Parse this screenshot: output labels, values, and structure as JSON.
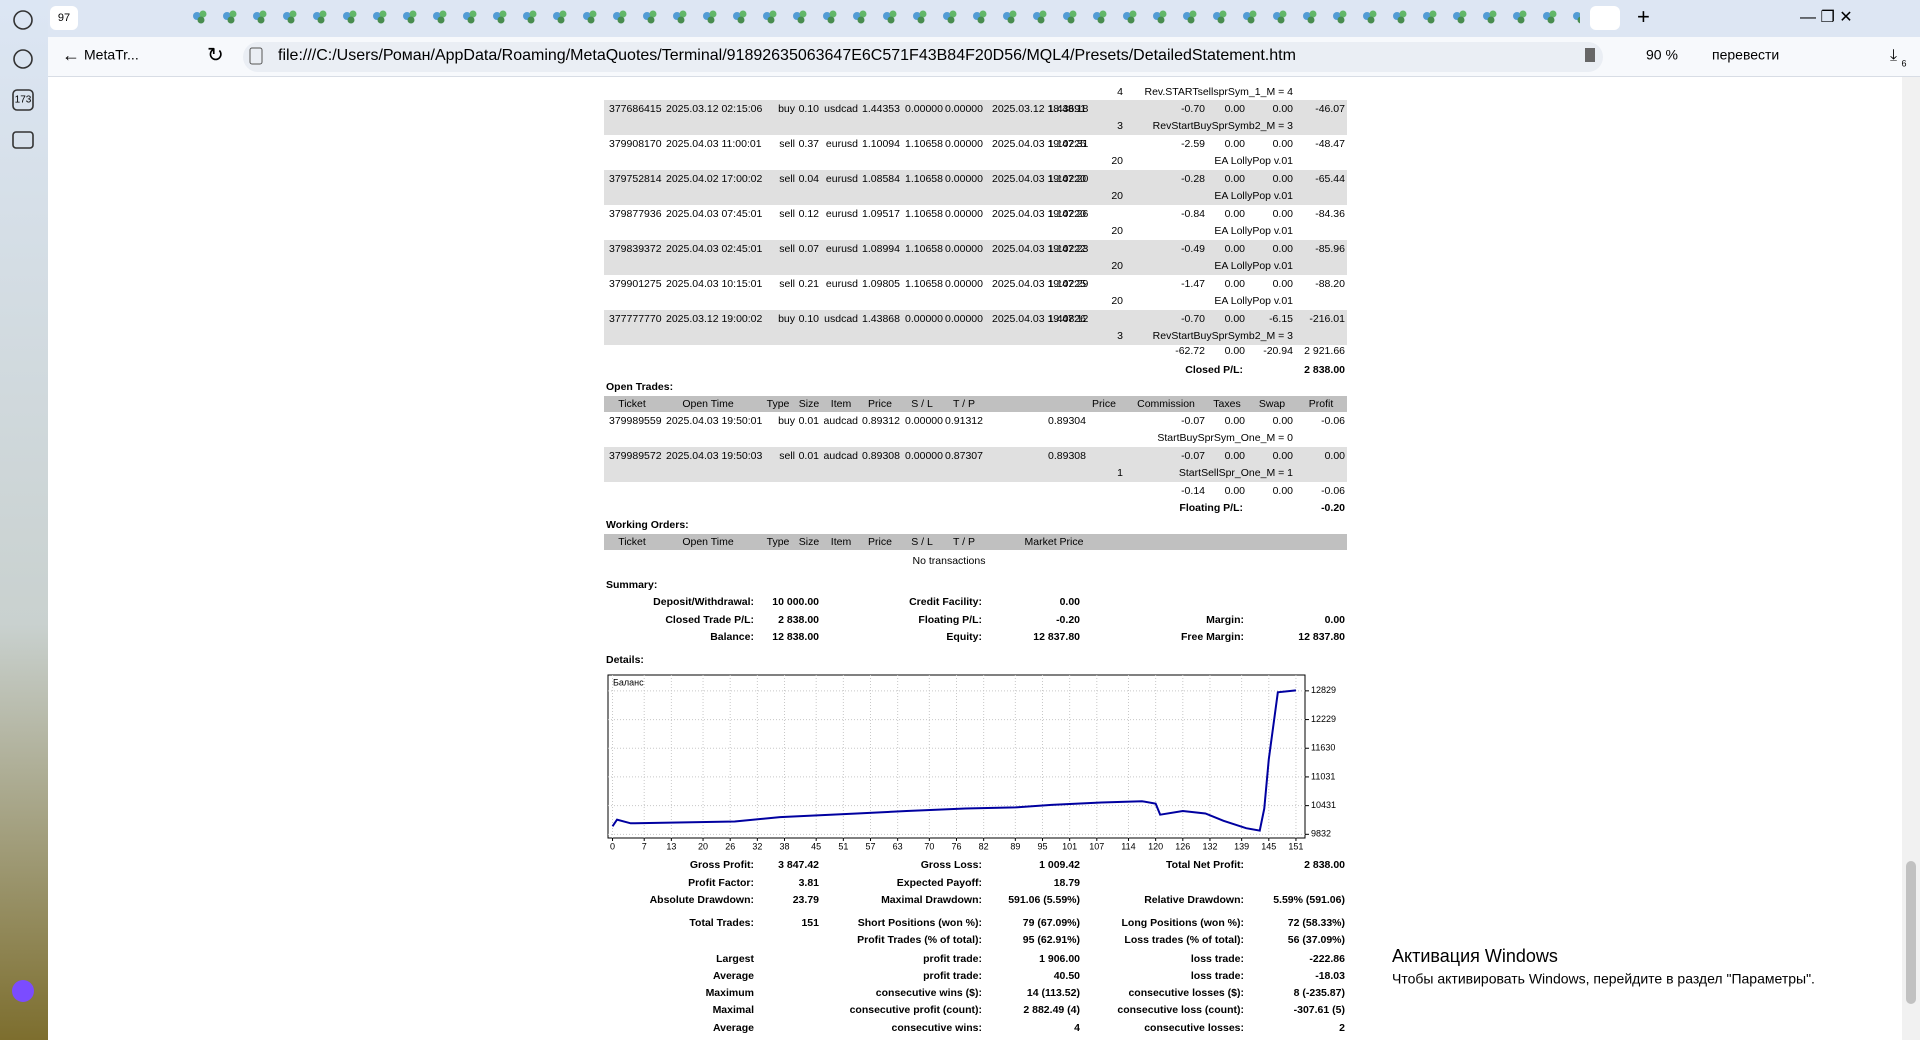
{
  "browser": {
    "tab_counter": "97",
    "page_tab": "MetaTr...",
    "address": "file:///C:/Users/Роман/AppData/Roaming/MetaQuotes/Terminal/91892635063647E6C571F43B84F20D56/MQL4/Presets/DetailedStatement.htm",
    "zoom": "90 %",
    "translate": "перевести",
    "sidebar_badge": "173",
    "downloads_badge": "6"
  },
  "closed_trades": {
    "partial_row": {
      "digits": "4",
      "comment": "Rev.STARTsellsprSym_1_M = 4"
    },
    "rows": [
      {
        "cells": [
          "377686415",
          "2025.03.12 02:15:06",
          "buy",
          "0.10",
          "usdcad",
          "1.44353",
          "0.00000",
          "0.00000",
          "2025.03.12 18:48:18",
          "1.43691",
          "-0.70",
          "0.00",
          "0.00",
          "-46.07"
        ],
        "digits": "3",
        "comment": "RevStartBuySprSymb2_M = 3"
      },
      {
        "cells": [
          "379908170",
          "2025.04.03 11:00:01",
          "sell",
          "0.37",
          "eurusd",
          "1.10094",
          "1.10658",
          "0.00000",
          "2025.04.03 19:47:31",
          "1.10225",
          "-2.59",
          "0.00",
          "0.00",
          "-48.47"
        ],
        "digits": "20",
        "comment": "EA LollyPop v.01"
      },
      {
        "cells": [
          "379752814",
          "2025.04.02 17:00:02",
          "sell",
          "0.04",
          "eurusd",
          "1.08584",
          "1.10658",
          "0.00000",
          "2025.04.03 19:47:20",
          "1.10220",
          "-0.28",
          "0.00",
          "0.00",
          "-65.44"
        ],
        "digits": "20",
        "comment": "EA LollyPop v.01"
      },
      {
        "cells": [
          "379877936",
          "2025.04.03 07:45:01",
          "sell",
          "0.12",
          "eurusd",
          "1.09517",
          "1.10658",
          "0.00000",
          "2025.04.03 19:47:26",
          "1.10220",
          "-0.84",
          "0.00",
          "0.00",
          "-84.36"
        ],
        "digits": "20",
        "comment": "EA LollyPop v.01"
      },
      {
        "cells": [
          "379839372",
          "2025.04.03 02:45:01",
          "sell",
          "0.07",
          "eurusd",
          "1.08994",
          "1.10658",
          "0.00000",
          "2025.04.03 19:47:23",
          "1.10222",
          "-0.49",
          "0.00",
          "0.00",
          "-85.96"
        ],
        "digits": "20",
        "comment": "EA LollyPop v.01"
      },
      {
        "cells": [
          "379901275",
          "2025.04.03 10:15:01",
          "sell",
          "0.21",
          "eurusd",
          "1.09805",
          "1.10658",
          "0.00000",
          "2025.04.03 19:47:29",
          "1.10225",
          "-1.47",
          "0.00",
          "0.00",
          "-88.20"
        ],
        "digits": "20",
        "comment": "EA LollyPop v.01"
      },
      {
        "cells": [
          "377777770",
          "2025.03.12 19:00:02",
          "buy",
          "0.10",
          "usdcad",
          "1.43868",
          "0.00000",
          "0.00000",
          "2025.04.03 19:47:12",
          "1.40826",
          "-0.70",
          "0.00",
          "-6.15",
          "-216.01"
        ],
        "digits": "3",
        "comment": "RevStartBuySprSymb2_M = 3"
      }
    ],
    "totals": [
      "-62.72",
      "0.00",
      "-20.94",
      "2 921.66"
    ],
    "pl_label": "Closed P/L:",
    "pl": "2 838.00"
  },
  "open_trades": {
    "title": "Open Trades:",
    "header": [
      "Ticket",
      "Open Time",
      "Type",
      "Size",
      "Item",
      "Price",
      "S / L",
      "T / P",
      "Price",
      "Commission",
      "Taxes",
      "Swap",
      "Profit"
    ],
    "rows": [
      {
        "cells": [
          "379989559",
          "2025.04.03 19:50:01",
          "buy",
          "0.01",
          "audcad",
          "0.89312",
          "0.00000",
          "0.91312",
          "0.89304",
          "-0.07",
          "0.00",
          "0.00",
          "-0.06"
        ],
        "digits": null,
        "comment": "StartBuySprSym_One_M = 0"
      },
      {
        "cells": [
          "379989572",
          "2025.04.03 19:50:03",
          "sell",
          "0.01",
          "audcad",
          "0.89308",
          "0.00000",
          "0.87307",
          "0.89308",
          "-0.07",
          "0.00",
          "0.00",
          "0.00"
        ],
        "digits": "1",
        "comment": "StartSellSpr_One_M = 1"
      }
    ],
    "totals": [
      "-0.14",
      "0.00",
      "0.00",
      "-0.06"
    ],
    "pl_label": "Floating P/L:",
    "pl": "-0.20"
  },
  "working_orders": {
    "title": "Working Orders:",
    "header": [
      "Ticket",
      "Open Time",
      "Type",
      "Size",
      "Item",
      "Price",
      "S / L",
      "T / P",
      "Market Price"
    ],
    "empty": "No transactions"
  },
  "summary": {
    "title": "Summary:",
    "rows": [
      [
        "Deposit/Withdrawal:",
        "10 000.00",
        "Credit Facility:",
        "0.00",
        null,
        null
      ],
      [
        "Closed Trade P/L:",
        "2 838.00",
        "Floating P/L:",
        "-0.20",
        "Margin:",
        "0.00"
      ],
      [
        "Balance:",
        "12 838.00",
        "Equity:",
        "12 837.80",
        "Free Margin:",
        "12 837.80"
      ]
    ]
  },
  "details": {
    "title": "Details:",
    "chart_data": {
      "type": "line",
      "series_label": "Баланс",
      "color": "#0000a0",
      "x": [
        0,
        1,
        4,
        27,
        37,
        54,
        65,
        78,
        89,
        97,
        108,
        117,
        120,
        121,
        126,
        131,
        135,
        140,
        143,
        144,
        145,
        147,
        151
      ],
      "values": [
        10000,
        10139,
        10062,
        10100,
        10190,
        10267,
        10318,
        10370,
        10395,
        10446,
        10497,
        10523,
        10472,
        10242,
        10318,
        10267,
        10113,
        9960,
        9909,
        10370,
        11400,
        12800,
        12838
      ],
      "xlim": [
        -1,
        153
      ],
      "ylim": [
        9755,
        13160
      ],
      "xticks": [
        0,
        7,
        13,
        20,
        26,
        32,
        38,
        45,
        51,
        57,
        63,
        70,
        76,
        82,
        89,
        95,
        101,
        107,
        114,
        120,
        126,
        132,
        139,
        145,
        151
      ],
      "yticks": [
        12829,
        12229,
        11630,
        11031,
        10431,
        9832
      ],
      "grid": true
    },
    "stats": [
      [
        "Gross Profit:",
        "3 847.42",
        "Gross Loss:",
        "1 009.42",
        "Total Net Profit:",
        "2 838.00"
      ],
      [
        "Profit Factor:",
        "3.81",
        "Expected Payoff:",
        "18.79",
        null,
        null
      ],
      [
        "Absolute Drawdown:",
        "23.79",
        "Maximal Drawdown:",
        "591.06 (5.59%)",
        "Relative Drawdown:",
        "5.59% (591.06)"
      ],
      [
        "Total Trades:",
        "151",
        "Short Positions (won %):",
        "79 (67.09%)",
        "Long Positions (won %):",
        "72 (58.33%)"
      ],
      [
        null,
        null,
        "Profit Trades (% of total):",
        "95 (62.91%)",
        "Loss trades (% of total):",
        "56 (37.09%)"
      ],
      [
        "Largest",
        null,
        "profit trade:",
        "1 906.00",
        "loss trade:",
        "-222.86"
      ],
      [
        "Average",
        null,
        "profit trade:",
        "40.50",
        "loss trade:",
        "-18.03"
      ],
      [
        "Maximum",
        null,
        "consecutive wins ($):",
        "14 (113.52)",
        "consecutive losses ($):",
        "8 (-235.87)"
      ],
      [
        "Maximal",
        null,
        "consecutive profit (count):",
        "2 882.49 (4)",
        "consecutive loss (count):",
        "-307.61 (5)"
      ],
      [
        "Average",
        null,
        "consecutive wins:",
        "4",
        "consecutive losses:",
        "2"
      ]
    ]
  },
  "watermark": {
    "title": "Активация Windows",
    "text": "Чтобы активировать Windows, перейдите в раздел \"Параметры\"."
  }
}
